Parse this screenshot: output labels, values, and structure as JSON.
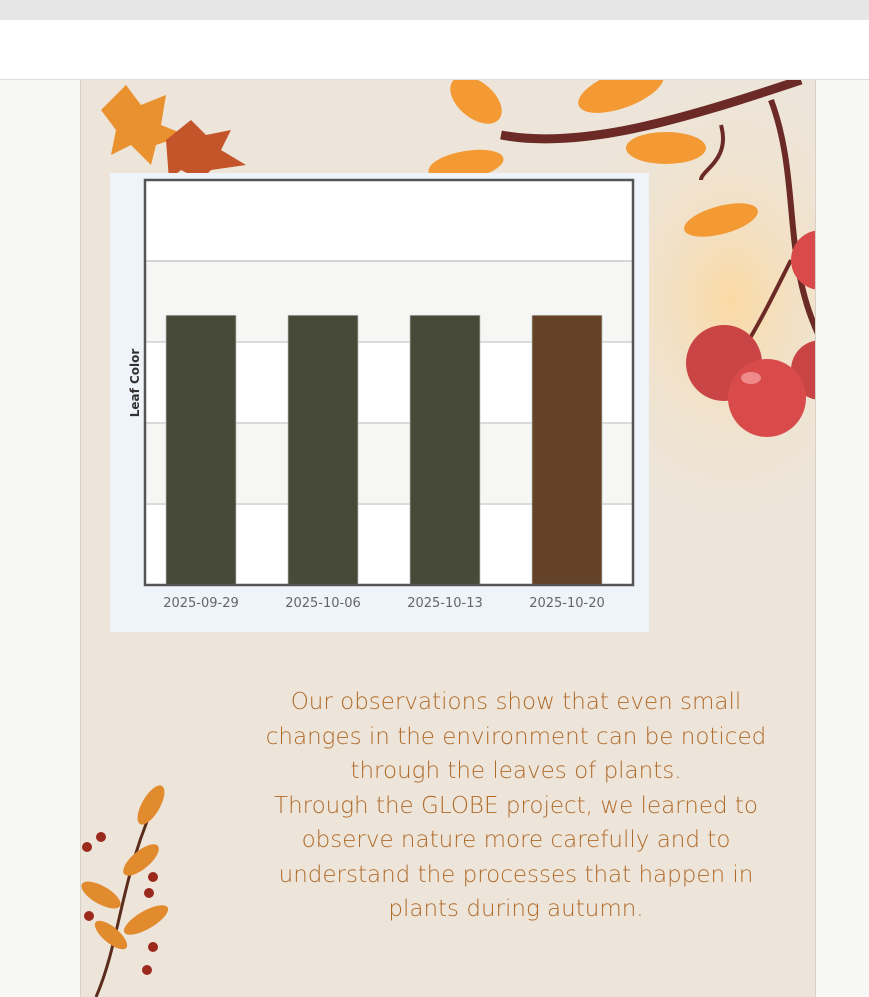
{
  "chart_data": {
    "type": "bar",
    "title": "",
    "xlabel": "",
    "ylabel": "Leaf Color",
    "categories": [
      "2025-09-29",
      "2025-10-06",
      "2025-10-13",
      "2025-10-20"
    ],
    "values": [
      3.33,
      3.33,
      3.33,
      3.33
    ],
    "bar_colors": [
      "#474a38",
      "#474a38",
      "#474a38",
      "#634227"
    ],
    "ylim": [
      0,
      5
    ],
    "grid": true,
    "legend": "none"
  },
  "caption": {
    "lines": [
      "Our observations show that even small",
      "changes in the environment can be noticed",
      "through the leaves of plants.",
      "Through the GLOBE project, we learned to",
      "observe nature more carefully and to",
      "understand the processes that happen in",
      "plants during autumn."
    ]
  },
  "colors": {
    "text": "#b06a2a",
    "background": "#ede5d9",
    "leaf_orange": "#f39a34",
    "berry_red": "#d94b4b",
    "branch": "#6b2a25"
  }
}
